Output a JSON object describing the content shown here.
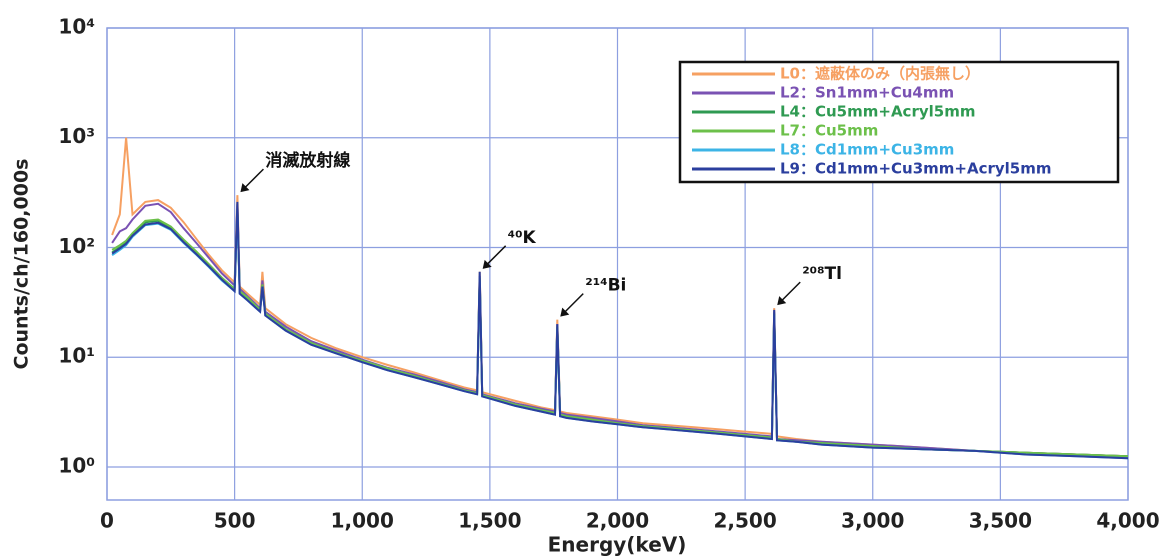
{
  "chart_data": {
    "type": "line",
    "yscale": "log",
    "grid": true,
    "legend": "upper right",
    "xlabel": "Energy(keV)",
    "ylabel": "Counts/ch/160,000s",
    "xlim": [
      0,
      4000
    ],
    "ylim": [
      0.5,
      10000
    ],
    "xticks": [
      0,
      500,
      {
        "value": 1000,
        "label": "1,000"
      },
      {
        "value": 1500,
        "label": "1,500"
      },
      {
        "value": 2000,
        "label": "2,000"
      },
      {
        "value": 2500,
        "label": "2,500"
      },
      {
        "value": 3000,
        "label": "3,000"
      },
      {
        "value": 3500,
        "label": "3,500"
      },
      {
        "value": 4000,
        "label": "4,000"
      }
    ],
    "yticks": [
      {
        "value": 1,
        "label": "10⁰"
      },
      {
        "value": 10,
        "label": "10¹"
      },
      {
        "value": 100,
        "label": "10²"
      },
      {
        "value": 1000,
        "label": "10³"
      },
      {
        "value": 10000,
        "label": "10⁴"
      }
    ],
    "x": [
      20,
      50,
      75,
      100,
      150,
      200,
      250,
      300,
      350,
      400,
      450,
      500,
      511,
      520,
      550,
      600,
      609,
      620,
      700,
      800,
      900,
      1000,
      1100,
      1200,
      1300,
      1400,
      1450,
      1460,
      1470,
      1500,
      1600,
      1700,
      1755,
      1764,
      1775,
      1800,
      1900,
      2000,
      2100,
      2200,
      2300,
      2400,
      2500,
      2605,
      2614,
      2625,
      2700,
      2800,
      3000,
      3200,
      3400,
      3600,
      3800,
      4000
    ],
    "series": [
      {
        "name": "L0：遮蔽体のみ（内張無し）",
        "color": "#f6a062",
        "values": [
          130,
          200,
          1000,
          200,
          260,
          270,
          230,
          170,
          120,
          85,
          62,
          48,
          300,
          44,
          38,
          30,
          60,
          28,
          20,
          15,
          12,
          10,
          8.5,
          7.3,
          6.2,
          5.3,
          5,
          60,
          4.8,
          4.6,
          4,
          3.5,
          3.3,
          22,
          3.2,
          3.1,
          2.9,
          2.7,
          2.5,
          2.4,
          2.3,
          2.2,
          2.1,
          2,
          28,
          1.9,
          1.8,
          1.7,
          1.6,
          1.5,
          1.4,
          1.35,
          1.3,
          1.25
        ]
      },
      {
        "name": "L2：Sn1mm+Cu4mm",
        "color": "#7a52b3",
        "values": [
          110,
          140,
          150,
          180,
          240,
          250,
          210,
          150,
          110,
          80,
          58,
          45,
          250,
          42,
          36,
          28,
          50,
          26,
          19,
          14,
          11.5,
          9.5,
          8,
          7,
          6,
          5.1,
          4.8,
          55,
          4.6,
          4.4,
          3.8,
          3.4,
          3.2,
          20,
          3.1,
          3,
          2.8,
          2.6,
          2.4,
          2.3,
          2.2,
          2.1,
          2,
          1.9,
          26,
          1.8,
          1.75,
          1.7,
          1.6,
          1.5,
          1.4,
          1.35,
          1.3,
          1.25
        ]
      },
      {
        "name": "L4：Cu5mm+Acryl5mm",
        "color": "#2f9a52",
        "values": [
          90,
          100,
          110,
          130,
          170,
          175,
          150,
          115,
          90,
          68,
          52,
          41,
          220,
          39,
          34,
          27,
          45,
          25,
          18,
          13.5,
          11,
          9.2,
          7.8,
          6.8,
          5.8,
          5,
          4.7,
          52,
          4.5,
          4.3,
          3.7,
          3.3,
          3.1,
          19,
          3,
          2.9,
          2.7,
          2.5,
          2.35,
          2.25,
          2.15,
          2.05,
          1.95,
          1.85,
          25,
          1.8,
          1.7,
          1.65,
          1.55,
          1.45,
          1.4,
          1.35,
          1.3,
          1.25
        ]
      },
      {
        "name": "L7：Cu5mm",
        "color": "#6cc04a",
        "values": [
          95,
          105,
          115,
          135,
          175,
          180,
          155,
          118,
          92,
          70,
          53,
          42,
          225,
          40,
          35,
          27,
          46,
          25,
          18,
          13.5,
          11,
          9.3,
          7.9,
          6.8,
          5.8,
          5,
          4.7,
          53,
          4.5,
          4.3,
          3.7,
          3.3,
          3.1,
          19,
          3,
          2.9,
          2.7,
          2.5,
          2.35,
          2.25,
          2.15,
          2.05,
          1.95,
          1.85,
          25,
          1.8,
          1.7,
          1.65,
          1.55,
          1.45,
          1.4,
          1.35,
          1.3,
          1.25
        ]
      },
      {
        "name": "L8：Cd1mm+Cu3mm",
        "color": "#3cb4e6",
        "values": [
          85,
          95,
          105,
          125,
          160,
          165,
          145,
          110,
          86,
          66,
          50,
          40,
          210,
          38,
          33,
          26,
          44,
          24,
          17.5,
          13,
          10.8,
          9,
          7.6,
          6.6,
          5.7,
          4.9,
          4.6,
          50,
          4.4,
          4.2,
          3.6,
          3.2,
          3,
          18,
          2.9,
          2.8,
          2.6,
          2.45,
          2.3,
          2.2,
          2.1,
          2,
          1.9,
          1.8,
          24,
          1.75,
          1.7,
          1.6,
          1.5,
          1.45,
          1.4,
          1.3,
          1.25,
          1.2
        ]
      },
      {
        "name": "L9：Cd1mm+Cu3mm+Acryl5mm",
        "color": "#2b3f9e",
        "values": [
          88,
          98,
          108,
          128,
          162,
          168,
          147,
          112,
          87,
          67,
          51,
          40,
          260,
          38,
          33,
          26,
          44,
          24,
          17.5,
          13,
          10.8,
          9,
          7.6,
          6.6,
          5.7,
          4.9,
          4.6,
          60,
          4.4,
          4.2,
          3.6,
          3.2,
          3,
          20,
          2.9,
          2.8,
          2.6,
          2.45,
          2.3,
          2.2,
          2.1,
          2,
          1.9,
          1.8,
          27,
          1.75,
          1.7,
          1.6,
          1.5,
          1.45,
          1.4,
          1.3,
          1.25,
          1.2
        ]
      }
    ],
    "annotations": [
      {
        "text": "消滅放射線",
        "x": 511,
        "y": 300
      },
      {
        "text": "⁴⁰K",
        "x": 1460,
        "y": 60
      },
      {
        "text": "²¹⁴Bi",
        "x": 1764,
        "y": 22
      },
      {
        "text": "²⁰⁸Tl",
        "x": 2614,
        "y": 28
      }
    ]
  }
}
